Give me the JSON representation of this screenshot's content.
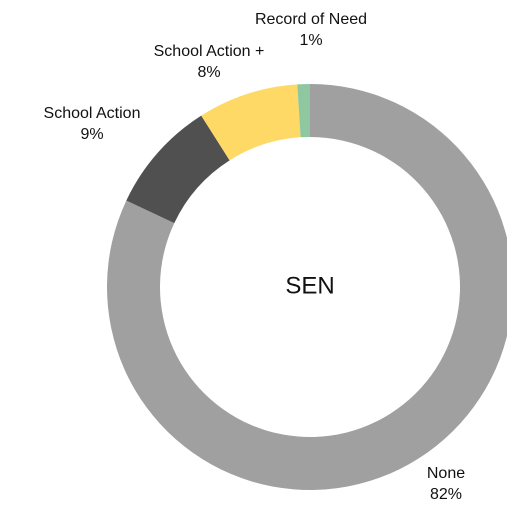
{
  "chart_data": {
    "type": "pie",
    "variant": "donut",
    "center_label": "SEN",
    "start_at": "top",
    "direction": "clockwise",
    "slices": [
      {
        "name": "None",
        "value": 82,
        "value_label": "82%",
        "color": "#a0a0a0"
      },
      {
        "name": "School Action",
        "value": 9,
        "value_label": "9%",
        "color": "#505050"
      },
      {
        "name": "School Action +",
        "value": 8,
        "value_label": "8%",
        "color": "#ffd966"
      },
      {
        "name": "Record of Need",
        "value": 1,
        "value_label": "1%",
        "color": "#8fc8a0"
      }
    ]
  }
}
